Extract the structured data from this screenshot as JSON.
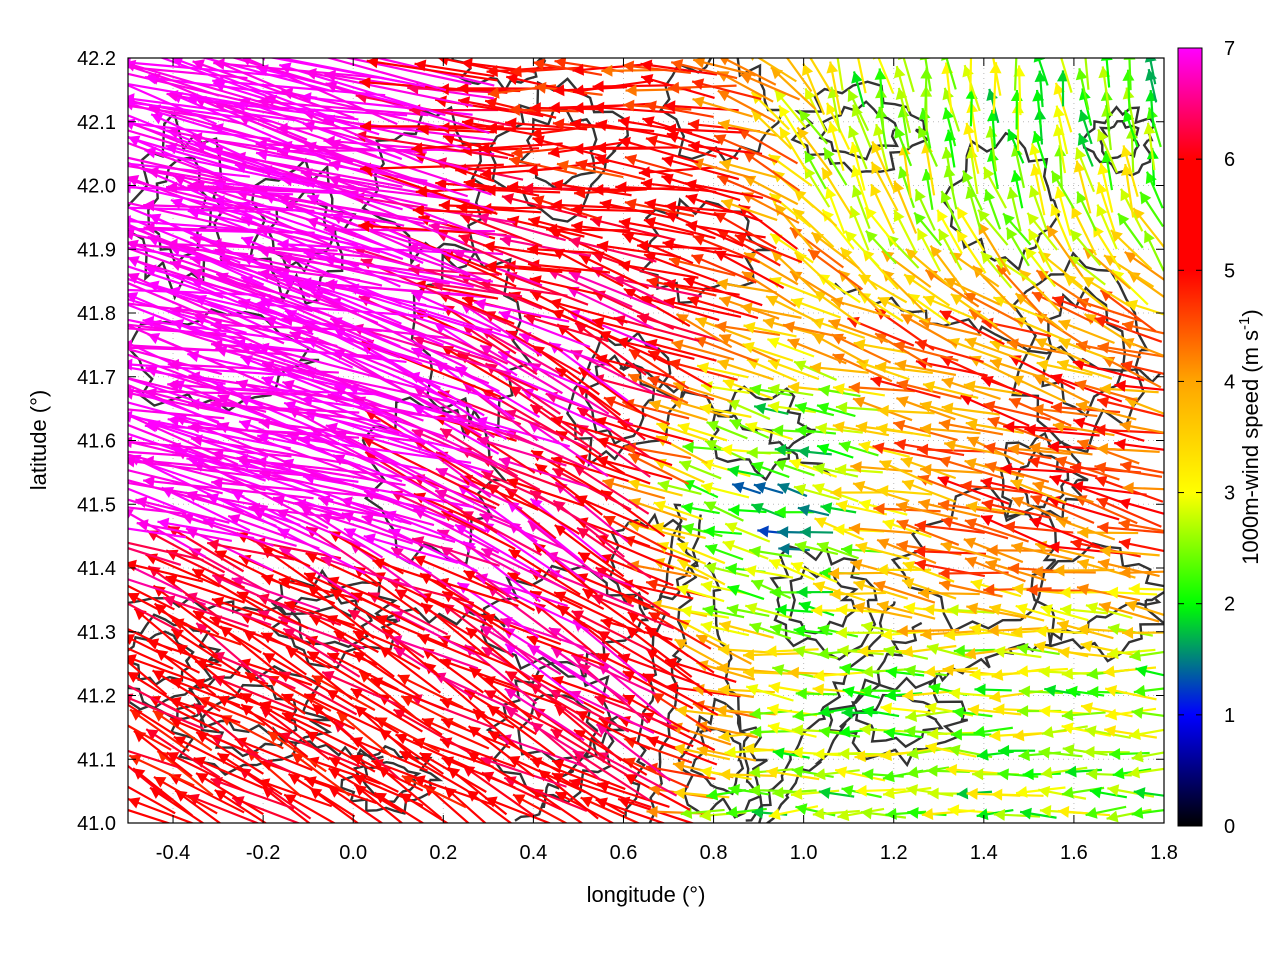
{
  "chart_data": {
    "type": "vector-field",
    "title": "",
    "xlabel": "longitude (°)",
    "ylabel": "latitude (°)",
    "xlim": [
      -0.5,
      1.8
    ],
    "ylim": [
      41.0,
      42.2
    ],
    "xticks": [
      "-0.4",
      "-0.2",
      "0.0",
      "0.2",
      "0.4",
      "0.6",
      "0.8",
      "1.0",
      "1.2",
      "1.4",
      "1.6",
      "1.8"
    ],
    "yticks": [
      "41.0",
      "41.1",
      "41.2",
      "41.3",
      "41.4",
      "41.5",
      "41.6",
      "41.7",
      "41.8",
      "41.9",
      "42.0",
      "42.1",
      "42.2"
    ],
    "grid": "dotted",
    "colorbar": {
      "label": "1000m-wind speed (m s",
      "label_sup": "-1",
      "label_end": ")",
      "range": [
        0,
        7
      ],
      "ticks": [
        "0",
        "1",
        "2",
        "3",
        "4",
        "5",
        "6",
        "7"
      ],
      "colors": [
        "#000000",
        "#0000ff",
        "#00ff00",
        "#ffff00",
        "#ffa500",
        "#ff0000",
        "#ff00ff"
      ]
    },
    "field_regions": [
      {
        "region": "north-west",
        "lon": [
          -0.5,
          0.2
        ],
        "lat": [
          41.5,
          42.2
        ],
        "speed": 7.0,
        "direction": "west-north-west"
      },
      {
        "region": "west-centre",
        "lon": [
          0.2,
          0.7
        ],
        "lat": [
          41.4,
          41.9
        ],
        "speed": 6.5,
        "direction": "north-west"
      },
      {
        "region": "north-centre",
        "lon": [
          0.2,
          0.8
        ],
        "lat": [
          41.9,
          42.2
        ],
        "speed": 5.0,
        "direction": "west"
      },
      {
        "region": "north-east",
        "lon": [
          1.1,
          1.8
        ],
        "lat": [
          41.9,
          42.2
        ],
        "speed": 2.3,
        "direction": "north"
      },
      {
        "region": "east-centre",
        "lon": [
          1.1,
          1.8
        ],
        "lat": [
          41.4,
          41.9
        ],
        "speed": 4.5,
        "direction": "west-north-west"
      },
      {
        "region": "south-west",
        "lon": [
          -0.5,
          0.1
        ],
        "lat": [
          41.0,
          41.35
        ],
        "speed": 5.5,
        "direction": "north-west"
      },
      {
        "region": "south-east",
        "lon": [
          1.2,
          1.8
        ],
        "lat": [
          41.0,
          41.25
        ],
        "speed": 2.5,
        "direction": "west"
      },
      {
        "region": "centre-calm",
        "lon": [
          0.75,
          1.05
        ],
        "lat": [
          41.45,
          41.65
        ],
        "speed": 1.2,
        "direction": "variable"
      }
    ]
  }
}
